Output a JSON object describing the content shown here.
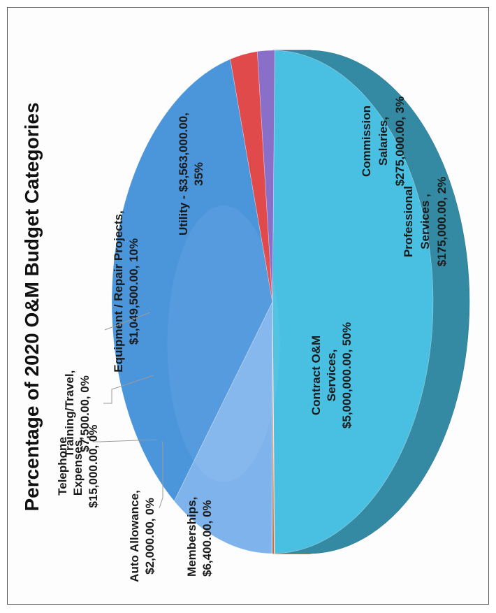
{
  "chart_data": {
    "type": "pie",
    "title": "Percentage of 2020 O&M Budget Categories",
    "slices": [
      {
        "label": "Contract O&M Services",
        "value": 5000000.0,
        "percent": "50%",
        "color": "#49c0e2",
        "text": [
          "Contract O&M",
          "Services,",
          "$5,000,000.00, 50%"
        ]
      },
      {
        "label": "Memberships",
        "value": 6400.0,
        "percent": "0%",
        "color": "#f0a860",
        "text": [
          "Memberships,",
          "$6,400.00, 0%"
        ]
      },
      {
        "label": "Auto Allowance",
        "value": 2000.0,
        "percent": "0%",
        "color": "#e9a86a",
        "text": [
          "Auto Allowance,",
          "$2,000.00, 0%"
        ]
      },
      {
        "label": "Telephone Expenses",
        "value": 15000.0,
        "percent": "0%",
        "color": "#b95a2a",
        "text": [
          "Telephone",
          "Expenses,",
          "$15,000.00, 0%"
        ]
      },
      {
        "label": "Training/Travel",
        "value": 7500.0,
        "percent": "0%",
        "color": "#8ab0de",
        "text": [
          "Training/Travel,",
          "$7,500.00, 0%"
        ]
      },
      {
        "label": "Equipment / Repair Projects",
        "value": 1049500.0,
        "percent": "10%",
        "color": "#7fb3ec",
        "text": [
          "Equipment / Repair Projects,",
          "$1,049,500.00, 10%"
        ]
      },
      {
        "label": "Utility",
        "value": 3563000.0,
        "percent": "35%",
        "color": "#4b95db",
        "text": [
          "Utility - $3,563,000.00,",
          "35%"
        ]
      },
      {
        "label": "Commission Salaries",
        "value": 275000.0,
        "percent": "3%",
        "color": "#e04a4a",
        "text": [
          "Commission",
          "Salaries,",
          "$275,000.00, 3%"
        ]
      },
      {
        "label": "Professional Services",
        "value": 175000.0,
        "percent": "2%",
        "color": "#8a6fc8",
        "text": [
          "Professional",
          "Services ,",
          "$175,000.00, 2%"
        ]
      }
    ]
  }
}
